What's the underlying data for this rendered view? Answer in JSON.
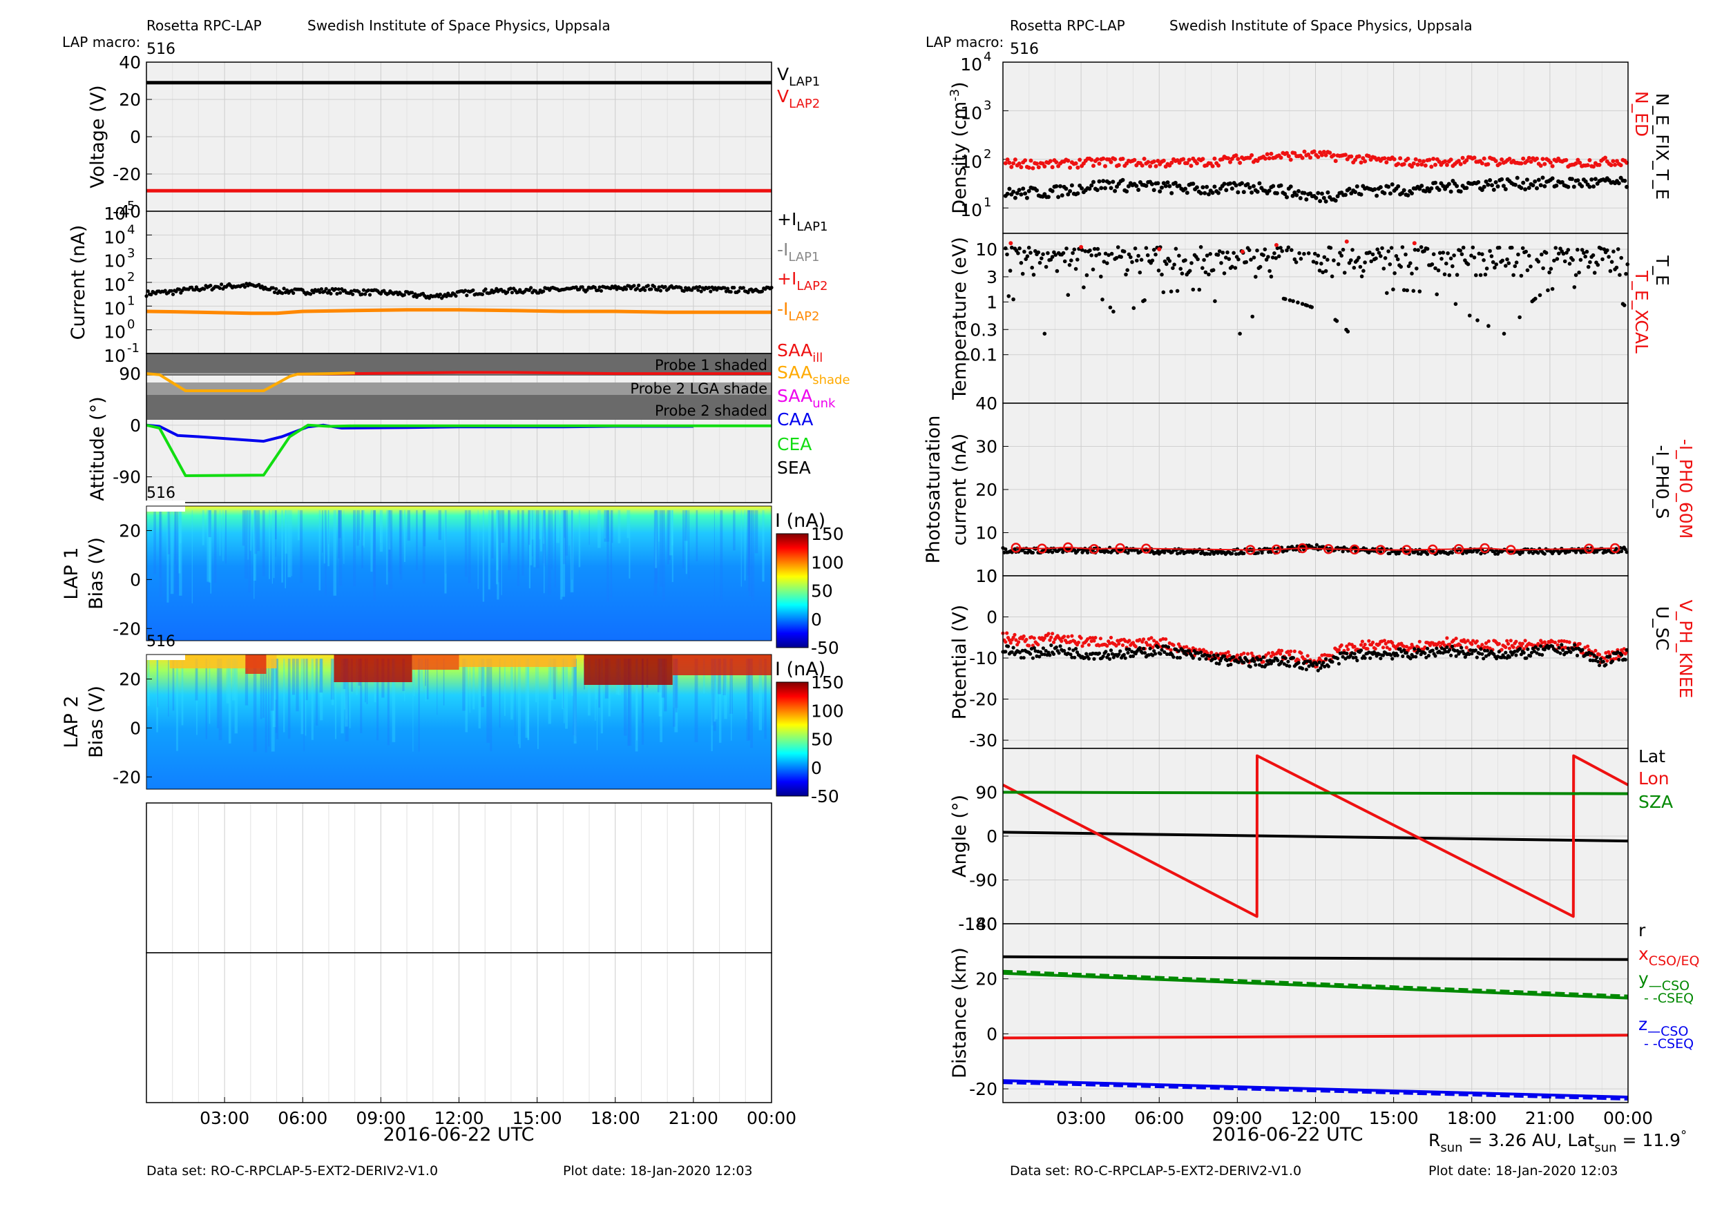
{
  "left": {
    "header": {
      "instrument": "Rosetta RPC-LAP",
      "institute": "Swedish Institute of Space Physics, Uppsala",
      "macro_label": "LAP macro:",
      "macro_value": "516"
    },
    "xlabel": "2016-06-22 UTC",
    "x_ticks": [
      "03:00",
      "06:00",
      "09:00",
      "12:00",
      "15:00",
      "18:00",
      "21:00",
      "00:00"
    ],
    "footer": {
      "dataset": "Data set: RO-C-RPCLAP-5-EXT2-DERIV2-V1.0",
      "plot_date": "Plot date: 18-Jan-2020 12:03"
    }
  },
  "right": {
    "header": {
      "instrument": "Rosetta RPC-LAP",
      "institute": "Swedish Institute of Space Physics, Uppsala",
      "macro_label": "LAP macro:",
      "macro_value": "516"
    },
    "xlabel": "2016-06-22 UTC",
    "x_ticks": [
      "03:00",
      "06:00",
      "09:00",
      "12:00",
      "15:00",
      "18:00",
      "21:00",
      "00:00"
    ],
    "footer": {
      "dataset": "Data set: RO-C-RPCLAP-5-EXT2-DERIV2-V1.0",
      "plot_date": "Plot date: 18-Jan-2020 12:03"
    },
    "rsun_note": {
      "r_main": "R",
      "r_sub": "sun",
      "mid": " = 3.26 AU, Lat",
      "lat_sub": "sun",
      "end": " = 11.9",
      "deg": "°"
    }
  },
  "colors": {
    "black": "#000000",
    "red": "#ee1111",
    "orange": "#ff8800",
    "gray": "#888888",
    "blue": "#0000ee",
    "green": "#11dd11",
    "dkgreen": "#008800",
    "magenta": "#ee00ee",
    "saa_orange": "#ffaa00",
    "shade": "#666666",
    "panel_bg": "#f0f0f0"
  },
  "chart_data": [
    {
      "id": "voltage",
      "type": "line",
      "ylabel": "Voltage (V)",
      "ylim": [
        -40,
        40
      ],
      "yticks": [
        "40",
        "20",
        "0",
        "-20",
        "-40"
      ],
      "series": [
        {
          "name": "V",
          "sub": "LAP1",
          "color": "#000000",
          "x": [
            0,
            24
          ],
          "y": [
            29,
            29
          ]
        },
        {
          "name": "V",
          "sub": "LAP2",
          "color": "#ee1111",
          "x": [
            0,
            24
          ],
          "y": [
            -29,
            -29
          ]
        }
      ]
    },
    {
      "id": "current",
      "type": "line",
      "ylabel": "Current (nA)",
      "yscale": "log",
      "ylim": [
        0.1,
        100000
      ],
      "yticks": [
        {
          "b": "10",
          "e": "5"
        },
        {
          "b": "10",
          "e": "4"
        },
        {
          "b": "10",
          "e": "3"
        },
        {
          "b": "10",
          "e": "2"
        },
        {
          "b": "10",
          "e": "1"
        },
        {
          "b": "10",
          "e": "0"
        },
        {
          "b": "10",
          "e": "-1"
        }
      ],
      "series": [
        {
          "name": "+I",
          "sub": "LAP1",
          "color": "#000000",
          "x": [
            0,
            1,
            2,
            3,
            4,
            5,
            6,
            7,
            8,
            9,
            10,
            11,
            12,
            13,
            14,
            15,
            16,
            17,
            18,
            19,
            20,
            21,
            22,
            23,
            24
          ],
          "y": [
            35,
            40,
            55,
            70,
            75,
            45,
            42,
            45,
            40,
            38,
            32,
            25,
            35,
            42,
            45,
            48,
            50,
            52,
            58,
            62,
            58,
            55,
            50,
            48,
            55
          ]
        },
        {
          "name": "-I",
          "sub": "LAP1",
          "color": "#888888",
          "x": [],
          "y": []
        },
        {
          "name": "+I",
          "sub": "LAP2",
          "color": "#ee1111",
          "x": [],
          "y": []
        },
        {
          "name": "-I",
          "sub": "LAP2",
          "color": "#ff8800",
          "x": [
            0,
            2,
            4,
            5,
            6,
            8,
            10,
            12,
            14,
            16,
            18,
            20,
            22,
            24
          ],
          "y": [
            6,
            5.5,
            5,
            5,
            6,
            6.5,
            7,
            7,
            6.5,
            6,
            6,
            5.5,
            5.5,
            5.5
          ]
        }
      ]
    },
    {
      "id": "attitude",
      "type": "line",
      "ylabel": "Attitude (°)",
      "ylim": [
        -135,
        125
      ],
      "yticks": [
        "90",
        "0",
        "-90"
      ],
      "shade_labels": [
        "Probe 1 shaded",
        "Probe 2 LGA shade",
        "Probe 2 shaded"
      ],
      "series": [
        {
          "name": "SAA",
          "sub": "ill",
          "color": "#ee1111",
          "x": [
            5.8,
            8,
            10,
            12,
            14,
            16,
            18,
            20,
            22,
            24
          ],
          "y": [
            89,
            90,
            91,
            92,
            92,
            91,
            90,
            90,
            90,
            90
          ]
        },
        {
          "name": "SAA",
          "sub": "shade",
          "color": "#ffaa00",
          "x": [
            0,
            0.5,
            1.5,
            4.5,
            5.5,
            5.8,
            7,
            8
          ],
          "y": [
            90,
            88,
            60,
            60,
            85,
            89,
            90,
            91
          ]
        },
        {
          "name": "SAA",
          "sub": "unk",
          "color": "#ee00ee",
          "x": [],
          "y": []
        },
        {
          "name": "CAA",
          "sub": "",
          "color": "#0000ee",
          "x": [
            0,
            0.5,
            1.2,
            2,
            4.5,
            5.2,
            6.2,
            6.8,
            7.5,
            10,
            12,
            14,
            16,
            18,
            20,
            21
          ],
          "y": [
            0,
            -2,
            -18,
            -20,
            -28,
            -20,
            -3,
            0,
            -5,
            -4,
            -3,
            -3,
            -3,
            -2,
            -2,
            -2
          ]
        },
        {
          "name": "CEA",
          "sub": "",
          "color": "#11dd11",
          "x": [
            0,
            0.5,
            1.5,
            4.5,
            5.5,
            6.2,
            7,
            8,
            10,
            12,
            14,
            16,
            18,
            20,
            22,
            24
          ],
          "y": [
            0,
            -5,
            -88,
            -87,
            -20,
            0,
            -2,
            -1,
            -1,
            -1,
            -1,
            -1,
            -1,
            -1,
            -1,
            -1
          ]
        },
        {
          "name": "SEA",
          "sub": "",
          "color": "#000000",
          "x": [],
          "y": []
        }
      ]
    },
    {
      "id": "lap1_sweep",
      "type": "heatmap",
      "ylabel": "LAP 1",
      "ylabel2": "Bias (V)",
      "ylim": [
        -25,
        30
      ],
      "yticks": [
        "20",
        "0",
        "-20"
      ],
      "macro_label": "516",
      "colorbar": {
        "title": "I (nA)",
        "range": [
          -50,
          150
        ],
        "ticks": [
          "150",
          "100",
          "50",
          "0",
          "-50"
        ]
      }
    },
    {
      "id": "lap2_sweep",
      "type": "heatmap",
      "ylabel": "LAP 2",
      "ylabel2": "Bias (V)",
      "ylim": [
        -25,
        30
      ],
      "yticks": [
        "20",
        "0",
        "-20"
      ],
      "macro_label": "516",
      "colorbar": {
        "title": "I (nA)",
        "range": [
          -50,
          150
        ],
        "ticks": [
          "150",
          "100",
          "50",
          "0",
          "-50"
        ]
      }
    },
    {
      "id": "density",
      "type": "scatter",
      "ylabel": "Density (cm",
      "ylabel_sup": "-3",
      "ylabel_end": ")",
      "yscale": "log",
      "ylim": [
        3,
        10000
      ],
      "yticks": [
        {
          "b": "10",
          "e": "4"
        },
        {
          "b": "10",
          "e": "3"
        },
        {
          "b": "10",
          "e": "2"
        },
        {
          "b": "10",
          "e": "1"
        }
      ],
      "series": [
        {
          "name": "N_ED",
          "color": "#ee1111",
          "x": [
            0,
            2,
            4,
            6,
            8,
            10,
            12,
            14,
            16,
            18,
            20,
            22,
            24
          ],
          "y": [
            85,
            80,
            90,
            85,
            90,
            115,
            125,
            100,
            85,
            95,
            90,
            85,
            95
          ]
        },
        {
          "name": "N_E_FIX_T_E",
          "color": "#000000",
          "x": [
            0,
            2,
            4,
            6,
            8,
            10,
            12,
            14,
            16,
            18,
            20,
            22,
            24
          ],
          "y": [
            18,
            20,
            28,
            25,
            22,
            25,
            15,
            22,
            22,
            28,
            30,
            30,
            30
          ]
        }
      ]
    },
    {
      "id": "temperature",
      "type": "scatter",
      "ylabel": "Temperature (eV)",
      "yscale": "log",
      "ylim": [
        0.012,
        20
      ],
      "yticks": [
        "10",
        "3",
        "1",
        "0.3",
        "0.1"
      ],
      "series": [
        {
          "name": "T_E_XCAL",
          "color": "#ee1111",
          "x": [
            0.3,
            3,
            6,
            9.2,
            10.5,
            13.2,
            15.8
          ],
          "y": [
            13,
            11,
            10,
            9,
            12,
            14,
            13
          ]
        },
        {
          "name": "T_E",
          "color": "#000000",
          "x": [
            0,
            1.5,
            3,
            4.5,
            6,
            7.5,
            9,
            10.5,
            12,
            13.5,
            15,
            16.5,
            18,
            19.5,
            21,
            22.5,
            24
          ],
          "y": [
            6,
            0.27,
            8,
            1.5,
            6,
            7,
            0.29,
            5,
            3,
            0.7,
            7,
            6,
            2,
            0.6,
            7,
            8,
            3
          ]
        }
      ]
    },
    {
      "id": "photosat",
      "type": "scatter",
      "ylabel": "Photosaturation",
      "ylabel2": "current (nA)",
      "ylim": [
        0,
        40
      ],
      "yticks": [
        "40",
        "30",
        "20",
        "10",
        "0"
      ],
      "series": [
        {
          "name": "-I_PH0_60M",
          "color": "#ee1111",
          "x": [
            0.5,
            1.5,
            2.5,
            3.5,
            4.5,
            5.5,
            9.5,
            10.5,
            11.5,
            12.5,
            13.5,
            14.5,
            15.5,
            16.5,
            17.5,
            18.5,
            19.5,
            22.5,
            23.5
          ],
          "y": [
            6.5,
            6.3,
            6.6,
            6.2,
            6.4,
            6.3,
            6,
            6.1,
            6.4,
            6.2,
            6.1,
            6,
            6,
            6.1,
            6.2,
            6.4,
            6,
            6.3,
            6.4
          ]
        },
        {
          "name": "-I_PH0_S",
          "color": "#000000",
          "x": [
            0,
            2,
            4,
            6,
            8,
            10,
            12,
            14,
            16,
            18,
            20,
            22,
            24
          ],
          "y": [
            6,
            5.8,
            6,
            5.7,
            5.6,
            5.7,
            6.6,
            5.9,
            5.5,
            5.7,
            5.6,
            5.8,
            6
          ]
        }
      ]
    },
    {
      "id": "potential",
      "type": "scatter",
      "ylabel": "Potential (V)",
      "ylim": [
        -32,
        10
      ],
      "yticks": [
        "10",
        "0",
        "-10",
        "-20",
        "-30"
      ],
      "series": [
        {
          "name": "V_PH_KNEE",
          "color": "#ee1111",
          "x": [
            0,
            1,
            2,
            3,
            4,
            5,
            6,
            7,
            8,
            9,
            10,
            11,
            12,
            13,
            14,
            15,
            16,
            17,
            18,
            19,
            20,
            21,
            22,
            23,
            24
          ],
          "y": [
            -5,
            -6,
            -5,
            -6,
            -6,
            -7,
            -6,
            -8,
            -9,
            -10,
            -10,
            -9,
            -11,
            -8,
            -7,
            -7,
            -7,
            -6,
            -7,
            -7,
            -7,
            -7,
            -7,
            -10,
            -8
          ]
        },
        {
          "name": "U_SC",
          "color": "#000000",
          "x": [
            0,
            1,
            2,
            3,
            4,
            5,
            6,
            7,
            8,
            9,
            10,
            11,
            12,
            13,
            14,
            15,
            16,
            17,
            18,
            19,
            20,
            21,
            22,
            23,
            24
          ],
          "y": [
            -8,
            -9,
            -8,
            -9,
            -9,
            -9,
            -8,
            -9,
            -10,
            -11,
            -11,
            -11,
            -12,
            -10,
            -9,
            -9,
            -9,
            -8,
            -9,
            -9,
            -9,
            -8,
            -8,
            -11,
            -9
          ]
        }
      ]
    },
    {
      "id": "angle",
      "type": "line",
      "ylabel": "Angle (°)",
      "ylim": [
        -180,
        180
      ],
      "yticks": [
        "90",
        "0",
        "-90",
        "-180"
      ],
      "series": [
        {
          "name": "Lat",
          "color": "#000000",
          "x": [
            0,
            24
          ],
          "y": [
            8,
            -10
          ]
        },
        {
          "name": "Lon",
          "color": "#ee1111",
          "x": [
            0,
            9.75,
            9.76,
            21.9,
            21.91,
            24
          ],
          "y": [
            105,
            -165,
            165,
            -165,
            165,
            105
          ]
        },
        {
          "name": "SZA",
          "color": "#008800",
          "x": [
            0,
            24
          ],
          "y": [
            90,
            87
          ]
        }
      ]
    },
    {
      "id": "distance",
      "type": "line",
      "ylabel": "Distance (km)",
      "ylim": [
        -25,
        40
      ],
      "yticks": [
        "40",
        "20",
        "0",
        "-20"
      ],
      "legend": [
        {
          "main": "r",
          "sub": "",
          "color": "#000000"
        },
        {
          "main": "x",
          "sub": "CSO/EQ",
          "color": "#ee1111"
        },
        {
          "main": "y",
          "sub": "—CSO",
          "color": "#008800"
        },
        {
          "main": " - -CSEQ",
          "sub": "",
          "color": "#008800"
        },
        {
          "main": "z",
          "sub": "—CSO",
          "color": "#0000ee"
        },
        {
          "main": " - -CSEQ",
          "sub": "",
          "color": "#0000ee"
        }
      ],
      "series": [
        {
          "name": "r",
          "color": "#000000",
          "dash": false,
          "x": [
            0,
            24
          ],
          "y": [
            28,
            27
          ]
        },
        {
          "name": "x",
          "color": "#ee1111",
          "dash": false,
          "x": [
            0,
            24
          ],
          "y": [
            -1.5,
            -0.5
          ]
        },
        {
          "name": "y CSO",
          "color": "#008800",
          "dash": false,
          "x": [
            0,
            24
          ],
          "y": [
            22,
            13
          ]
        },
        {
          "name": "y CSEQ",
          "color": "#008800",
          "dash": true,
          "x": [
            0,
            24
          ],
          "y": [
            22.5,
            13.5
          ]
        },
        {
          "name": "z CSO",
          "color": "#0000ee",
          "dash": false,
          "x": [
            0,
            24
          ],
          "y": [
            -17,
            -23
          ]
        },
        {
          "name": "z CSEQ",
          "color": "#0000ee",
          "dash": true,
          "x": [
            0,
            24
          ],
          "y": [
            -17.5,
            -23.5
          ]
        }
      ]
    }
  ]
}
